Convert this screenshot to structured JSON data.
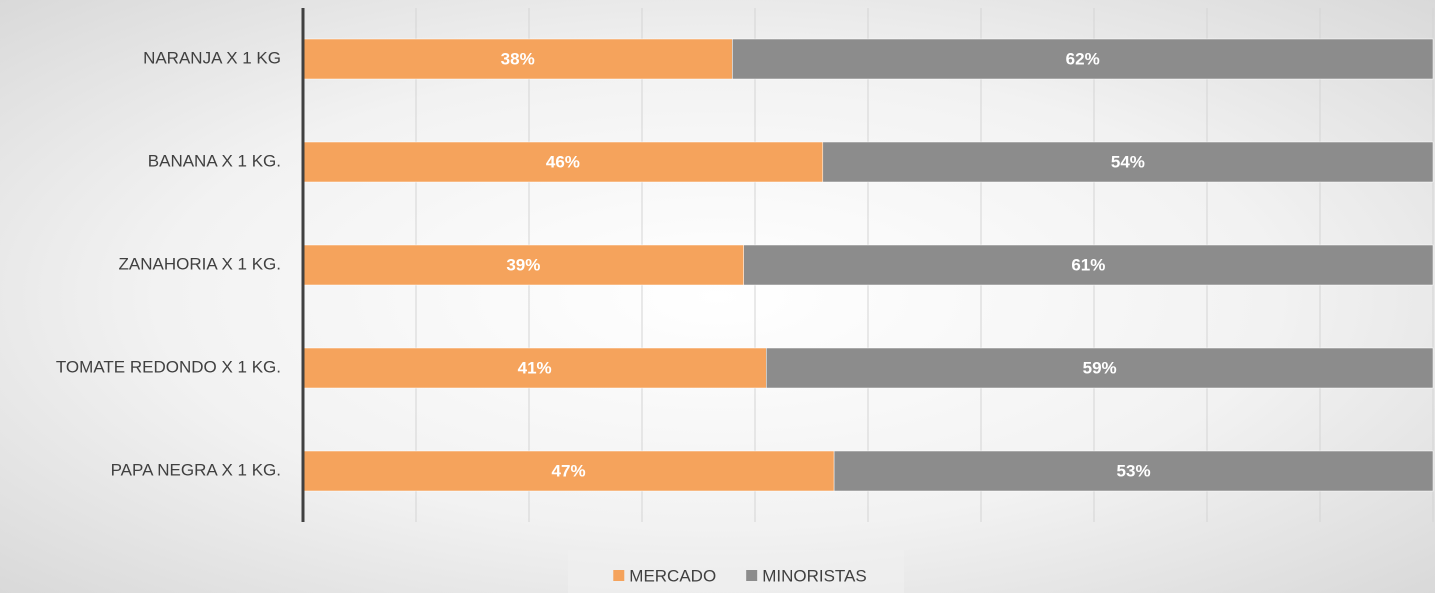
{
  "chart_data": {
    "type": "stacked-bar-horizontal",
    "categories": [
      "NARANJA X 1 KG",
      "BANANA X 1 KG.",
      "ZANAHORIA X 1 KG.",
      "TOMATE REDONDO X 1 KG.",
      "PAPA NEGRA X 1 KG."
    ],
    "series": [
      {
        "name": "MERCADO",
        "color": "#f5a35c",
        "values": [
          38,
          46,
          39,
          41,
          47
        ],
        "value_labels": [
          "38%",
          "46%",
          "39%",
          "41%",
          "47%"
        ]
      },
      {
        "name": "MINORISTAS",
        "color": "#8c8c8c",
        "values": [
          62,
          54,
          61,
          59,
          53
        ],
        "value_labels": [
          "62%",
          "54%",
          "61%",
          "59%",
          "53%"
        ]
      }
    ],
    "xlim": [
      0,
      100
    ],
    "xticks": [
      0,
      10,
      20,
      30,
      40,
      50,
      60,
      70,
      80,
      90,
      100
    ],
    "grid": true,
    "legend": "bottom"
  }
}
